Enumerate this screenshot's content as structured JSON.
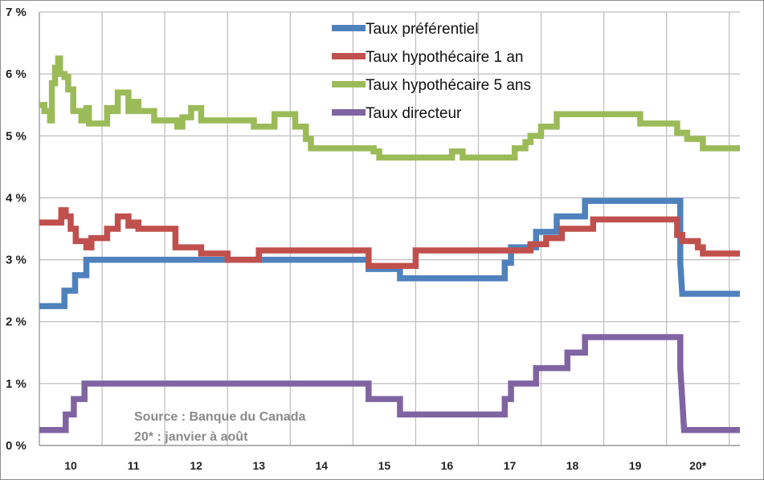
{
  "chart_data": {
    "type": "line",
    "step": true,
    "x_unit": "year",
    "x_range": [
      2009.5,
      2020.67
    ],
    "y_range": [
      0,
      7
    ],
    "y_ticks": [
      0,
      1,
      2,
      3,
      4,
      5,
      6,
      7
    ],
    "y_tick_labels": [
      "0 %",
      "1 %",
      "2 %",
      "3 %",
      "4 %",
      "5 %",
      "6 %",
      "7 %"
    ],
    "x_category_labels": [
      {
        "label": "10",
        "year": 2010
      },
      {
        "label": "11",
        "year": 2011
      },
      {
        "label": "12",
        "year": 2012
      },
      {
        "label": "13",
        "year": 2013
      },
      {
        "label": "14",
        "year": 2014
      },
      {
        "label": "15",
        "year": 2015
      },
      {
        "label": "16",
        "year": 2016
      },
      {
        "label": "17",
        "year": 2017
      },
      {
        "label": "18",
        "year": 2018
      },
      {
        "label": "19",
        "year": 2019
      },
      {
        "label": "20*",
        "year": 2020
      }
    ],
    "gridlines": true,
    "legend_position": "top-right",
    "annotation": [
      "Source : Banque du Canada",
      "20* :  janvier à août"
    ],
    "series": [
      {
        "name": "Taux préférentiel",
        "color": "#4f81bd",
        "points": [
          [
            2009.5,
            2.25
          ],
          [
            2009.9,
            2.25
          ],
          [
            2009.9,
            2.5
          ],
          [
            2010.07,
            2.5
          ],
          [
            2010.07,
            2.75
          ],
          [
            2010.25,
            2.75
          ],
          [
            2010.25,
            3.0
          ],
          [
            2014.75,
            3.0
          ],
          [
            2014.75,
            2.85
          ],
          [
            2015.25,
            2.85
          ],
          [
            2015.25,
            2.7
          ],
          [
            2016.92,
            2.7
          ],
          [
            2016.92,
            2.95
          ],
          [
            2017.02,
            2.95
          ],
          [
            2017.02,
            3.2
          ],
          [
            2017.42,
            3.2
          ],
          [
            2017.42,
            3.45
          ],
          [
            2017.75,
            3.45
          ],
          [
            2017.75,
            3.7
          ],
          [
            2018.2,
            3.7
          ],
          [
            2018.2,
            3.95
          ],
          [
            2019.72,
            3.95
          ],
          [
            2019.72,
            2.95
          ],
          [
            2019.75,
            2.45
          ],
          [
            2020.67,
            2.45
          ]
        ]
      },
      {
        "name": "Taux hypothécaire 1 an",
        "color": "#c0504d",
        "points": [
          [
            2009.5,
            3.6
          ],
          [
            2009.85,
            3.6
          ],
          [
            2009.85,
            3.8
          ],
          [
            2009.92,
            3.8
          ],
          [
            2009.92,
            3.7
          ],
          [
            2010.0,
            3.7
          ],
          [
            2010.0,
            3.5
          ],
          [
            2010.08,
            3.5
          ],
          [
            2010.08,
            3.3
          ],
          [
            2010.25,
            3.3
          ],
          [
            2010.25,
            3.2
          ],
          [
            2010.33,
            3.2
          ],
          [
            2010.33,
            3.35
          ],
          [
            2010.58,
            3.35
          ],
          [
            2010.58,
            3.5
          ],
          [
            2010.75,
            3.5
          ],
          [
            2010.75,
            3.7
          ],
          [
            2010.92,
            3.7
          ],
          [
            2010.92,
            3.55
          ],
          [
            2011.0,
            3.55
          ],
          [
            2011.0,
            3.6
          ],
          [
            2011.08,
            3.6
          ],
          [
            2011.08,
            3.5
          ],
          [
            2011.67,
            3.5
          ],
          [
            2011.67,
            3.2
          ],
          [
            2012.08,
            3.2
          ],
          [
            2012.08,
            3.1
          ],
          [
            2012.5,
            3.1
          ],
          [
            2012.5,
            3.0
          ],
          [
            2013.0,
            3.0
          ],
          [
            2013.0,
            3.15
          ],
          [
            2014.75,
            3.15
          ],
          [
            2014.75,
            2.9
          ],
          [
            2015.5,
            2.9
          ],
          [
            2015.5,
            3.15
          ],
          [
            2017.33,
            3.15
          ],
          [
            2017.33,
            3.25
          ],
          [
            2017.58,
            3.25
          ],
          [
            2017.58,
            3.35
          ],
          [
            2017.83,
            3.35
          ],
          [
            2017.83,
            3.5
          ],
          [
            2018.33,
            3.5
          ],
          [
            2018.33,
            3.65
          ],
          [
            2019.67,
            3.65
          ],
          [
            2019.67,
            3.4
          ],
          [
            2019.75,
            3.4
          ],
          [
            2019.75,
            3.3
          ],
          [
            2020.0,
            3.3
          ],
          [
            2020.0,
            3.2
          ],
          [
            2020.08,
            3.2
          ],
          [
            2020.08,
            3.1
          ],
          [
            2020.67,
            3.1
          ]
        ]
      },
      {
        "name": "Taux hypothécaire 5 ans",
        "color": "#9bbb59",
        "points": [
          [
            2009.5,
            5.5
          ],
          [
            2009.58,
            5.5
          ],
          [
            2009.58,
            5.4
          ],
          [
            2009.67,
            5.4
          ],
          [
            2009.67,
            5.25
          ],
          [
            2009.7,
            5.25
          ],
          [
            2009.7,
            5.85
          ],
          [
            2009.75,
            5.85
          ],
          [
            2009.75,
            6.1
          ],
          [
            2009.8,
            6.1
          ],
          [
            2009.8,
            6.25
          ],
          [
            2009.83,
            6.25
          ],
          [
            2009.83,
            6.0
          ],
          [
            2009.9,
            6.0
          ],
          [
            2009.9,
            5.95
          ],
          [
            2009.96,
            5.95
          ],
          [
            2009.96,
            5.75
          ],
          [
            2010.04,
            5.75
          ],
          [
            2010.04,
            5.4
          ],
          [
            2010.17,
            5.4
          ],
          [
            2010.17,
            5.25
          ],
          [
            2010.25,
            5.25
          ],
          [
            2010.25,
            5.45
          ],
          [
            2010.29,
            5.45
          ],
          [
            2010.29,
            5.2
          ],
          [
            2010.58,
            5.2
          ],
          [
            2010.58,
            5.45
          ],
          [
            2010.67,
            5.45
          ],
          [
            2010.67,
            5.4
          ],
          [
            2010.75,
            5.4
          ],
          [
            2010.75,
            5.7
          ],
          [
            2010.92,
            5.7
          ],
          [
            2010.92,
            5.4
          ],
          [
            2011.0,
            5.4
          ],
          [
            2011.0,
            5.55
          ],
          [
            2011.08,
            5.55
          ],
          [
            2011.08,
            5.4
          ],
          [
            2011.33,
            5.4
          ],
          [
            2011.33,
            5.25
          ],
          [
            2011.7,
            5.25
          ],
          [
            2011.7,
            5.15
          ],
          [
            2011.78,
            5.15
          ],
          [
            2011.78,
            5.3
          ],
          [
            2011.92,
            5.3
          ],
          [
            2011.92,
            5.45
          ],
          [
            2012.08,
            5.45
          ],
          [
            2012.08,
            5.25
          ],
          [
            2012.92,
            5.25
          ],
          [
            2012.92,
            5.15
          ],
          [
            2013.25,
            5.15
          ],
          [
            2013.25,
            5.35
          ],
          [
            2013.58,
            5.35
          ],
          [
            2013.58,
            5.15
          ],
          [
            2013.75,
            5.15
          ],
          [
            2013.75,
            4.95
          ],
          [
            2013.83,
            4.95
          ],
          [
            2013.83,
            4.8
          ],
          [
            2014.83,
            4.8
          ],
          [
            2014.83,
            4.75
          ],
          [
            2014.92,
            4.75
          ],
          [
            2014.92,
            4.65
          ],
          [
            2016.08,
            4.65
          ],
          [
            2016.08,
            4.75
          ],
          [
            2016.25,
            4.75
          ],
          [
            2016.25,
            4.65
          ],
          [
            2017.08,
            4.65
          ],
          [
            2017.08,
            4.8
          ],
          [
            2017.25,
            4.8
          ],
          [
            2017.25,
            4.9
          ],
          [
            2017.33,
            4.9
          ],
          [
            2017.33,
            5.0
          ],
          [
            2017.5,
            5.0
          ],
          [
            2017.5,
            5.15
          ],
          [
            2017.75,
            5.15
          ],
          [
            2017.75,
            5.35
          ],
          [
            2019.08,
            5.35
          ],
          [
            2019.08,
            5.2
          ],
          [
            2019.67,
            5.2
          ],
          [
            2019.67,
            5.05
          ],
          [
            2019.83,
            5.05
          ],
          [
            2019.83,
            4.95
          ],
          [
            2020.08,
            4.95
          ],
          [
            2020.08,
            4.8
          ],
          [
            2020.67,
            4.8
          ]
        ]
      },
      {
        "name": "Taux directeur",
        "color": "#8064a2",
        "points": [
          [
            2009.5,
            0.25
          ],
          [
            2009.92,
            0.25
          ],
          [
            2009.92,
            0.5
          ],
          [
            2010.05,
            0.5
          ],
          [
            2010.05,
            0.75
          ],
          [
            2010.22,
            0.75
          ],
          [
            2010.22,
            1.0
          ],
          [
            2014.75,
            1.0
          ],
          [
            2014.75,
            0.75
          ],
          [
            2015.25,
            0.75
          ],
          [
            2015.25,
            0.5
          ],
          [
            2016.92,
            0.5
          ],
          [
            2016.92,
            0.75
          ],
          [
            2017.02,
            0.75
          ],
          [
            2017.02,
            1.0
          ],
          [
            2017.42,
            1.0
          ],
          [
            2017.42,
            1.25
          ],
          [
            2017.92,
            1.25
          ],
          [
            2017.92,
            1.5
          ],
          [
            2018.2,
            1.5
          ],
          [
            2018.2,
            1.75
          ],
          [
            2019.72,
            1.75
          ],
          [
            2019.72,
            1.25
          ],
          [
            2019.75,
            0.75
          ],
          [
            2019.78,
            0.25
          ],
          [
            2020.67,
            0.25
          ]
        ]
      }
    ]
  }
}
